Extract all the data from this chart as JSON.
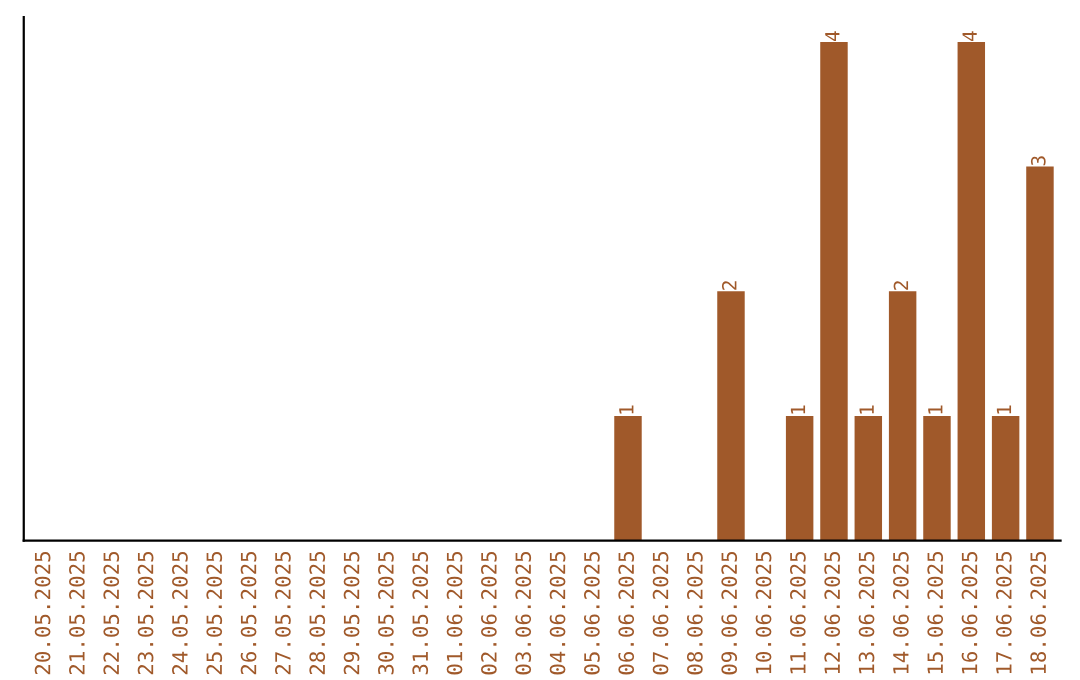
{
  "chart_data": {
    "type": "bar",
    "categories": [
      "20.05.2025",
      "21.05.2025",
      "22.05.2025",
      "23.05.2025",
      "24.05.2025",
      "25.05.2025",
      "26.05.2025",
      "27.05.2025",
      "28.05.2025",
      "29.05.2025",
      "30.05.2025",
      "31.05.2025",
      "01.06.2025",
      "02.06.2025",
      "03.06.2025",
      "04.06.2025",
      "05.06.2025",
      "06.06.2025",
      "07.06.2025",
      "08.06.2025",
      "09.06.2025",
      "10.06.2025",
      "11.06.2025",
      "12.06.2025",
      "13.06.2025",
      "14.06.2025",
      "15.06.2025",
      "16.06.2025",
      "17.06.2025",
      "18.06.2025"
    ],
    "values": [
      null,
      null,
      null,
      null,
      null,
      null,
      null,
      null,
      null,
      null,
      null,
      null,
      null,
      null,
      null,
      null,
      null,
      1,
      null,
      null,
      2,
      null,
      1,
      4,
      1,
      2,
      1,
      4,
      1,
      3
    ],
    "value_labels": [
      null,
      null,
      null,
      null,
      null,
      null,
      null,
      null,
      null,
      null,
      null,
      null,
      null,
      null,
      null,
      null,
      null,
      "1",
      null,
      null,
      "2",
      null,
      "1",
      "4",
      "1",
      "2",
      "1",
      "4",
      "1",
      "3"
    ],
    "color": "#a0592a",
    "ylim": [
      0,
      4.2
    ],
    "tick_labels": "x",
    "grid": false,
    "legend": false
  }
}
